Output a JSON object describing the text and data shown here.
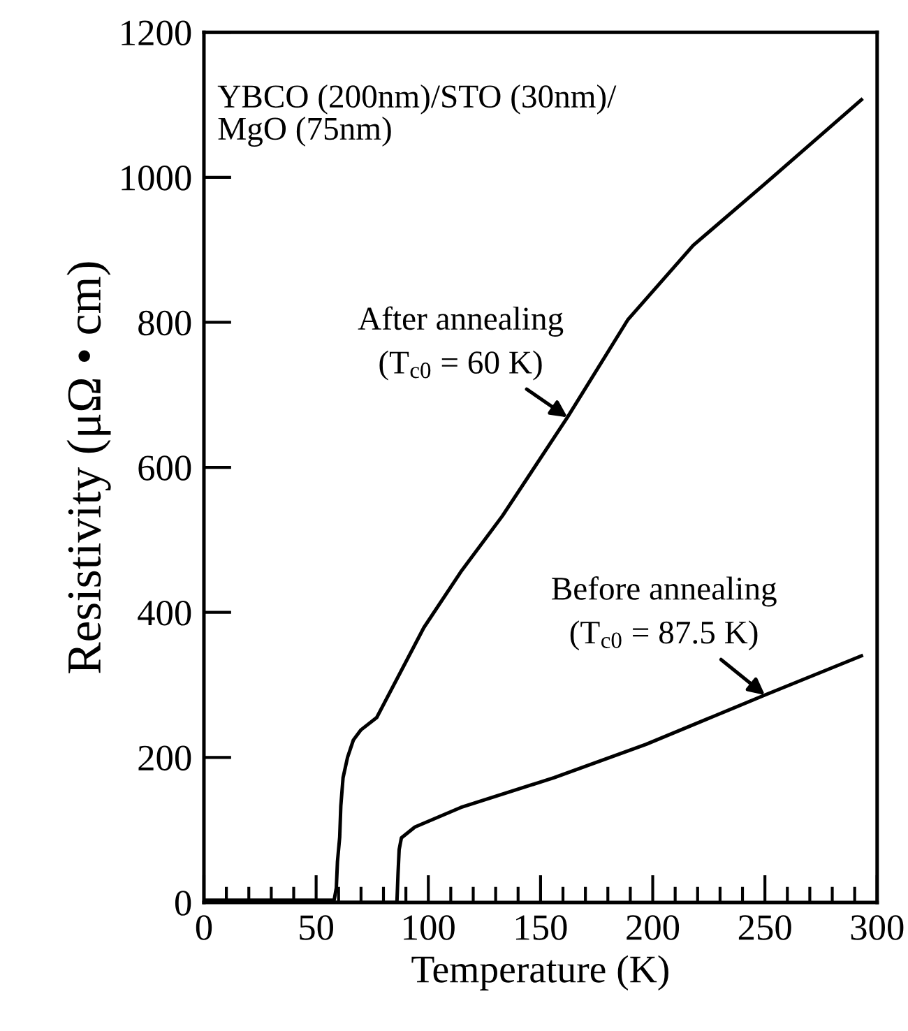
{
  "chart_data": {
    "type": "line",
    "xlabel": "Temperature (K)",
    "ylabel": "Resistivity (μΩ • cm)",
    "xlim": [
      0,
      300
    ],
    "xticks": [
      0,
      50,
      100,
      150,
      200,
      250,
      300
    ],
    "ylim": [
      0,
      1200
    ],
    "yticks": [
      0,
      200,
      400,
      600,
      800,
      1000,
      1200
    ],
    "grid": false,
    "legend": false,
    "marker": "none",
    "line_style": "solid",
    "series": [
      {
        "color": "#000000",
        "x": [
          0,
          20,
          40,
          58,
          59,
          59.5,
          60.5,
          61,
          62,
          64,
          66.6,
          70,
          77,
          98,
          114.5,
          133,
          162,
          189,
          218,
          250,
          293
        ],
        "values": [
          3,
          3,
          3,
          3,
          20,
          56,
          90,
          133,
          172,
          200,
          224,
          238,
          255,
          379,
          456,
          533,
          669,
          804,
          906,
          991,
          1107
        ]
      },
      {
        "color": "#000000",
        "x": [
          0,
          40,
          80,
          86,
          86.5,
          87,
          88,
          94,
          114.5,
          156,
          197,
          250,
          293
        ],
        "values": [
          0,
          0,
          0,
          0,
          40,
          73,
          89,
          104,
          131,
          172,
          218,
          286,
          340
        ]
      }
    ],
    "annotations": [
      "YBCO (200nm)/STO (30nm)/\nMgO (75nm)",
      {
        "text": "After annealing\n(T$_{c0}$ = 60 K)",
        "x": 162,
        "y": 669
      },
      {
        "text": "Before annealing\n(T$_{c0}$ = 87.5 K)",
        "x": 250,
        "y": 286
      }
    ]
  }
}
